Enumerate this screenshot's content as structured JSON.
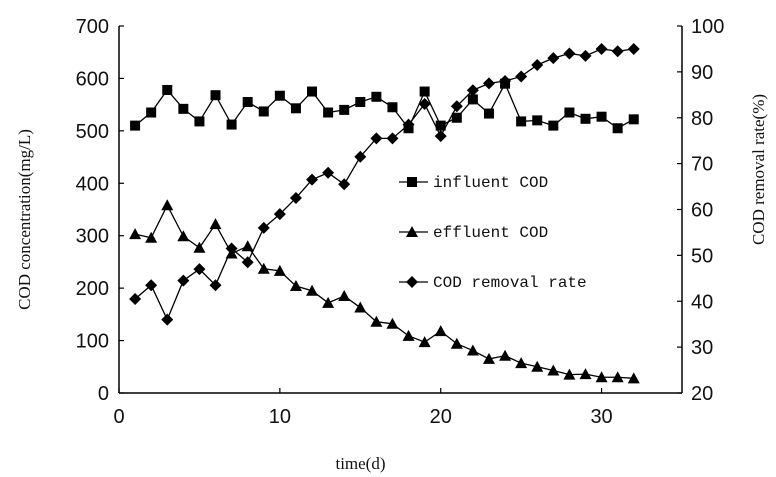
{
  "chart_data": {
    "type": "line",
    "title": "",
    "xlabel": "time(d)",
    "ylabel_left": "COD concentration(mg/L)",
    "ylabel_right": "COD removal rate(%)",
    "xlim": [
      0,
      35
    ],
    "xticks": [
      0,
      10,
      20,
      30
    ],
    "ylim_left": [
      0,
      700
    ],
    "yticks_left": [
      0,
      100,
      200,
      300,
      400,
      500,
      600,
      700
    ],
    "ylim_right": [
      20,
      100
    ],
    "yticks_right": [
      20,
      30,
      40,
      50,
      60,
      70,
      80,
      90,
      100
    ],
    "grid": false,
    "legend_position": "center-right",
    "x": [
      1,
      2,
      3,
      4,
      5,
      6,
      7,
      8,
      9,
      10,
      11,
      12,
      13,
      14,
      15,
      16,
      17,
      18,
      19,
      20,
      21,
      22,
      23,
      24,
      25,
      26,
      27,
      28,
      29,
      30,
      31,
      32
    ],
    "series": [
      {
        "name": "influent COD",
        "axis": "left",
        "marker": "square",
        "values": [
          510,
          535,
          578,
          542,
          518,
          568,
          512,
          555,
          537,
          567,
          543,
          575,
          535,
          540,
          555,
          565,
          545,
          505,
          575,
          510,
          525,
          560,
          533,
          590,
          518,
          520,
          510,
          535,
          523,
          527,
          505,
          522
        ]
      },
      {
        "name": "effluent COD",
        "axis": "left",
        "marker": "triangle",
        "values": [
          303,
          296,
          358,
          299,
          277,
          322,
          266,
          280,
          237,
          233,
          204,
          195,
          172,
          185,
          163,
          136,
          132,
          109,
          97,
          118,
          94,
          81,
          65,
          71,
          57,
          50,
          43,
          35,
          36,
          30,
          30,
          28
        ]
      },
      {
        "name": "COD removal rate",
        "axis": "right",
        "marker": "diamond",
        "values": [
          40.5,
          43.5,
          36,
          44.5,
          47,
          43.5,
          51.5,
          48.5,
          56,
          59,
          62.5,
          66.5,
          68,
          65.5,
          71.5,
          75.5,
          75.5,
          78.5,
          83,
          76,
          82.5,
          86,
          87.5,
          88,
          89,
          91.5,
          93,
          94,
          93.5,
          95,
          94.5,
          95
        ]
      }
    ]
  }
}
